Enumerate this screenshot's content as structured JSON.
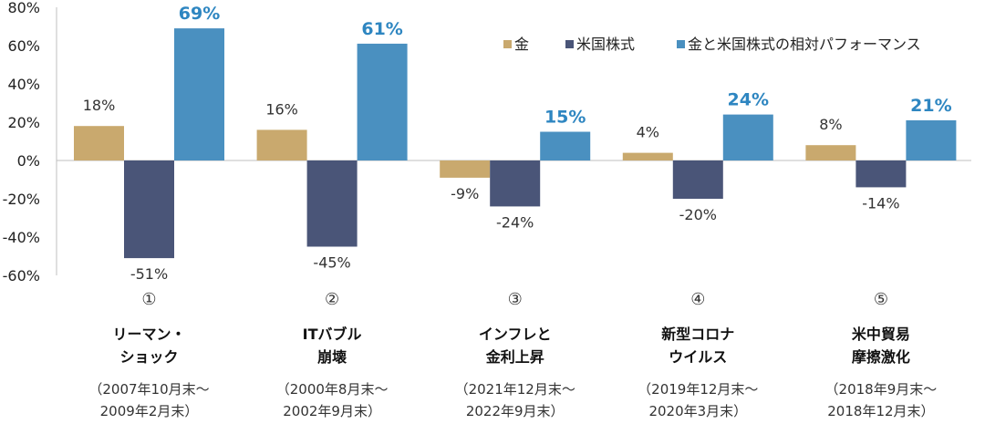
{
  "chart_data": {
    "type": "bar",
    "ylim": [
      -60,
      80
    ],
    "yticks": [
      -60,
      -40,
      -20,
      0,
      20,
      40,
      60,
      80
    ],
    "ytick_labels": [
      "-60%",
      "-40%",
      "-20%",
      "0%",
      "20%",
      "40%",
      "60%",
      "80%"
    ],
    "categories": [
      {
        "num": "①",
        "title": [
          "リーマン・",
          "ショック"
        ],
        "period": [
          "（2007年10月末～",
          "2009年2月末）"
        ]
      },
      {
        "num": "②",
        "title": [
          "ITバブル",
          "崩壊"
        ],
        "period": [
          "（2000年8月末～",
          "2002年9月末）"
        ]
      },
      {
        "num": "③",
        "title": [
          "インフレと",
          "金利上昇"
        ],
        "period": [
          "（2021年12月末～",
          "2022年9月末）"
        ]
      },
      {
        "num": "④",
        "title": [
          "新型コロナ",
          "ウイルス"
        ],
        "period": [
          "（2019年12月末～",
          "2020年3月末）"
        ]
      },
      {
        "num": "⑤",
        "title": [
          "米中貿易",
          "摩擦激化"
        ],
        "period": [
          "（2018年9月末～",
          "2018年12月末）"
        ]
      }
    ],
    "series": [
      {
        "name": "金",
        "color": "#c9a96e",
        "values": [
          18,
          16,
          -9,
          4,
          8
        ],
        "labels": [
          "18%",
          "16%",
          "-9%",
          "4%",
          "8%"
        ]
      },
      {
        "name": "米国株式",
        "color": "#4a5578",
        "values": [
          -51,
          -45,
          -24,
          -20,
          -14
        ],
        "labels": [
          "-51%",
          "-45%",
          "-24%",
          "-20%",
          "-14%"
        ]
      },
      {
        "name": "金と米国株式の相対パフォーマンス",
        "color": "#4a90c0",
        "values": [
          69,
          61,
          15,
          24,
          21
        ],
        "labels": [
          "69%",
          "61%",
          "15%",
          "24%",
          "21%"
        ],
        "highlight": true
      }
    ],
    "legend_position": "top-right",
    "grid": false
  }
}
